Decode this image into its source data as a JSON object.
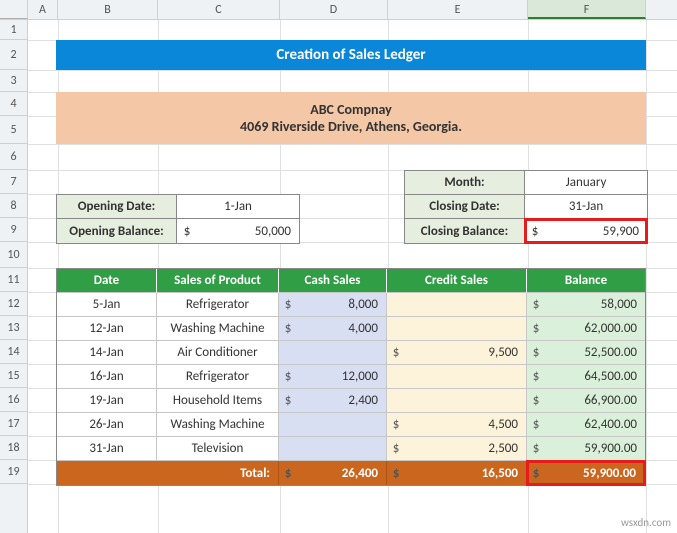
{
  "columns": [
    {
      "label": "A",
      "w": 30
    },
    {
      "label": "B",
      "w": 100
    },
    {
      "label": "C",
      "w": 122
    },
    {
      "label": "D",
      "w": 108
    },
    {
      "label": "E",
      "w": 140
    },
    {
      "label": "F",
      "w": 118,
      "selected": true
    }
  ],
  "rows": [
    {
      "n": 1,
      "h": 20
    },
    {
      "n": 2,
      "h": 30
    },
    {
      "n": 3,
      "h": 22
    },
    {
      "n": 4,
      "h": 24
    },
    {
      "n": 5,
      "h": 28
    },
    {
      "n": 6,
      "h": 26
    },
    {
      "n": 7,
      "h": 24
    },
    {
      "n": 8,
      "h": 24
    },
    {
      "n": 9,
      "h": 24
    },
    {
      "n": 10,
      "h": 26
    },
    {
      "n": 11,
      "h": 24
    },
    {
      "n": 12,
      "h": 24
    },
    {
      "n": 13,
      "h": 24
    },
    {
      "n": 14,
      "h": 24
    },
    {
      "n": 15,
      "h": 24
    },
    {
      "n": 16,
      "h": 24
    },
    {
      "n": 17,
      "h": 24
    },
    {
      "n": 18,
      "h": 24
    },
    {
      "n": 19,
      "h": 24
    }
  ],
  "title": "Creation of Sales Ledger",
  "company": {
    "name": "ABC Compnay",
    "address": "4069 Riverside Drive, Athens, Georgia."
  },
  "opening": {
    "date_label": "Opening Date:",
    "date": "1-Jan",
    "balance_label": "Opening Balance:",
    "balance_cur": "$",
    "balance": "50,000"
  },
  "closing": {
    "month_label": "Month:",
    "month": "January",
    "date_label": "Closing Date:",
    "date": "31-Jan",
    "balance_label": "Closing Balance:",
    "balance_cur": "$",
    "balance": "59,900"
  },
  "ledger": {
    "headers": {
      "date": "Date",
      "product": "Sales of Product",
      "cash": "Cash Sales",
      "credit": "Credit Sales",
      "balance": "Balance"
    },
    "rows": [
      {
        "date": "5-Jan",
        "product": "Refrigerator",
        "cash": "8,000",
        "credit": "",
        "balance": "58,000"
      },
      {
        "date": "12-Jan",
        "product": "Washing Machine",
        "cash": "4,000",
        "credit": "",
        "balance": "62,000.00"
      },
      {
        "date": "14-Jan",
        "product": "Air Conditioner",
        "cash": "",
        "credit": "9,500",
        "balance": "52,500.00"
      },
      {
        "date": "16-Jan",
        "product": "Refrigerator",
        "cash": "12,000",
        "credit": "",
        "balance": "64,500.00"
      },
      {
        "date": "19-Jan",
        "product": "Household Items",
        "cash": "2,400",
        "credit": "",
        "balance": "66,900.00"
      },
      {
        "date": "26-Jan",
        "product": "Washing Machine",
        "cash": "",
        "credit": "4,500",
        "balance": "62,400.00"
      },
      {
        "date": "31-Jan",
        "product": "Television",
        "cash": "",
        "credit": "2,500",
        "balance": "59,900.00"
      }
    ],
    "total": {
      "label": "Total:",
      "cash_cur": "$",
      "cash": "26,400",
      "credit_cur": "$",
      "credit": "16,500",
      "balance_cur": "$",
      "balance": "59,900.00"
    }
  },
  "colors": {
    "title_bg": "#0b87d9",
    "company_bg": "#f4c7a6",
    "header_green": "#2f9e44",
    "info_bg": "#e6eedf",
    "cash_bg": "#d9dff2",
    "credit_bg": "#fdf3db",
    "balance_bg": "#dbf0da",
    "total_bg": "#cb661f",
    "highlight": "#e61c1c"
  },
  "watermark": "wsxdn.com"
}
